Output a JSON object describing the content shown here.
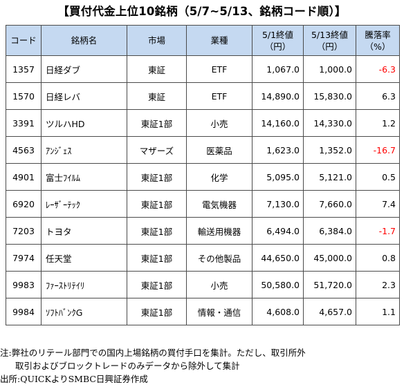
{
  "title": "【買付代金上位10銘柄（5/7~5/13、銘柄コード順）】",
  "headers": {
    "code": "コード",
    "name": "銘柄名",
    "market": "市場",
    "industry": "業種",
    "price_may1": [
      "5/1終値",
      "（円）"
    ],
    "price_may13": [
      "5/13終値",
      "（円）"
    ],
    "change": [
      "騰落率",
      "（%）"
    ]
  },
  "rows": [
    {
      "code": "1357",
      "name": "日経ダブ",
      "market": "東証",
      "industry": "ETF",
      "p1": "1,067.0",
      "p2": "1,000.0",
      "change": "-6.3",
      "negative": true
    },
    {
      "code": "1570",
      "name": "日経レバ",
      "market": "東証",
      "industry": "ETF",
      "p1": "14,890.0",
      "p2": "15,830.0",
      "change": "6.3",
      "negative": false
    },
    {
      "code": "3391",
      "name": "ツルハHD",
      "market": "東証1部",
      "industry": "小売",
      "p1": "14,160.0",
      "p2": "14,330.0",
      "change": "1.2",
      "negative": false
    },
    {
      "code": "4563",
      "name": "ｱﾝｼﾞｪｽ",
      "market": "マザーズ",
      "industry": "医薬品",
      "p1": "1,623.0",
      "p2": "1,352.0",
      "change": "-16.7",
      "negative": true
    },
    {
      "code": "4901",
      "name": "富士ﾌｲﾙﾑ",
      "market": "東証1部",
      "industry": "化学",
      "p1": "5,095.0",
      "p2": "5,121.0",
      "change": "0.5",
      "negative": false
    },
    {
      "code": "6920",
      "name": "ﾚｰｻﾞｰﾃｯｸ",
      "market": "東証1部",
      "industry": "電気機器",
      "p1": "7,130.0",
      "p2": "7,660.0",
      "change": "7.4",
      "negative": false
    },
    {
      "code": "7203",
      "name": "トヨタ",
      "market": "東証1部",
      "industry": "輸送用機器",
      "p1": "6,494.0",
      "p2": "6,384.0",
      "change": "-1.7",
      "negative": true
    },
    {
      "code": "7974",
      "name": "任天堂",
      "market": "東証1部",
      "industry": "その他製品",
      "p1": "44,650.0",
      "p2": "45,000.0",
      "change": "0.8",
      "negative": false
    },
    {
      "code": "9983",
      "name": "ﾌｧｰｽﾄﾘﾃｲﾘ",
      "market": "東証1部",
      "industry": "小売",
      "p1": "50,580.0",
      "p2": "51,720.0",
      "change": "2.3",
      "negative": false
    },
    {
      "code": "9984",
      "name": "ｿﾌﾄﾊﾞﾝｸG",
      "market": "東証1部",
      "industry": "情報・通信",
      "p1": "4,608.0",
      "p2": "4,657.0",
      "change": "1.1",
      "negative": false
    }
  ],
  "notes": [
    "注:弊社のリテール部門での国内上場銘柄の買付手口を集計。ただし、取引所外",
    "取引およびブロックトレードのみデータから除外して集計",
    "出所:QUICKよりSMBC日興証券作成"
  ],
  "colors": {
    "header_bg": "#c5d9f1",
    "negative": "#ff0000",
    "border": "#4a4a4a"
  }
}
